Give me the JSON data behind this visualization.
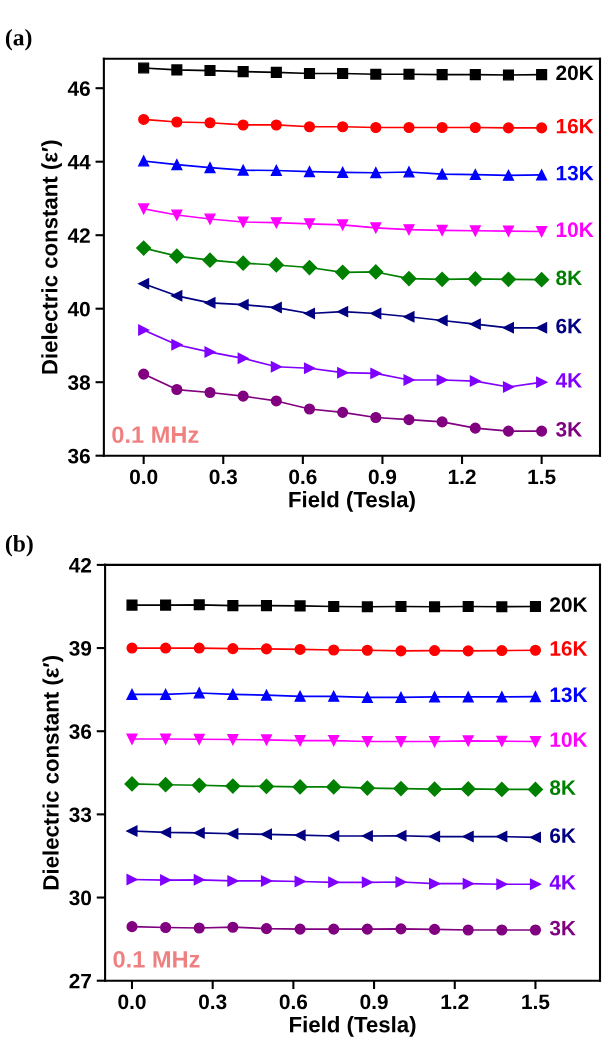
{
  "chart_data": [
    {
      "type": "line",
      "title": "(a)",
      "xlabel": "Field (Tesla)",
      "ylabel": "Dielectric constant (ε′)",
      "x": [
        0,
        0.125,
        0.25,
        0.375,
        0.5,
        0.625,
        0.75,
        0.875,
        1.0,
        1.125,
        1.25,
        1.375,
        1.5
      ],
      "xlim": [
        -0.15,
        1.72
      ],
      "xticks": [
        {
          "value": 0,
          "label": "0.0"
        },
        {
          "value": 0.3,
          "label": "0.3"
        },
        {
          "value": 0.6,
          "label": "0.6"
        },
        {
          "value": 0.9,
          "label": "0.9"
        },
        {
          "value": 1.2,
          "label": "1.2"
        },
        {
          "value": 1.5,
          "label": "1.5"
        }
      ],
      "ylim": [
        36,
        46.8
      ],
      "yticks": [
        36,
        38,
        40,
        42,
        44,
        46
      ],
      "grid": false,
      "legend": false,
      "annotations": [
        "0.1 MHz"
      ],
      "series": [
        {
          "name": "20K",
          "color": "#000000",
          "marker": "square",
          "values": [
            46.55,
            46.5,
            46.48,
            46.45,
            46.43,
            46.4,
            46.4,
            46.38,
            46.38,
            46.37,
            46.37,
            46.36,
            46.37
          ]
        },
        {
          "name": "16K",
          "color": "#ff0000",
          "marker": "circle",
          "values": [
            45.15,
            45.08,
            45.06,
            45.0,
            45.0,
            44.95,
            44.95,
            44.93,
            44.93,
            44.93,
            44.93,
            44.92,
            44.92
          ]
        },
        {
          "name": "13K",
          "color": "#0000ff",
          "marker": "triangle",
          "values": [
            44.02,
            43.92,
            43.84,
            43.77,
            43.76,
            43.73,
            43.71,
            43.7,
            43.72,
            43.66,
            43.65,
            43.63,
            43.64
          ]
        },
        {
          "name": "10K",
          "color": "#ff00ff",
          "marker": "triangle-down",
          "values": [
            42.72,
            42.55,
            42.44,
            42.36,
            42.34,
            42.31,
            42.28,
            42.2,
            42.15,
            42.13,
            42.12,
            42.11,
            42.1
          ]
        },
        {
          "name": "8K",
          "color": "#008000",
          "marker": "diamond",
          "values": [
            41.65,
            41.43,
            41.32,
            41.24,
            41.19,
            41.12,
            40.99,
            41.0,
            40.82,
            40.8,
            40.81,
            40.8,
            40.79
          ]
        },
        {
          "name": "6K",
          "color": "#000080",
          "marker": "triangle-left",
          "values": [
            40.68,
            40.35,
            40.16,
            40.11,
            40.03,
            39.87,
            39.92,
            39.87,
            39.78,
            39.68,
            39.58,
            39.48,
            39.48
          ]
        },
        {
          "name": "4K",
          "color": "#8000ff",
          "marker": "triangle-right",
          "values": [
            39.42,
            39.02,
            38.82,
            38.65,
            38.42,
            38.38,
            38.26,
            38.24,
            38.06,
            38.06,
            38.03,
            37.87,
            38.0
          ]
        },
        {
          "name": "3K",
          "color": "#800080",
          "marker": "circle",
          "values": [
            38.22,
            37.8,
            37.72,
            37.62,
            37.49,
            37.27,
            37.18,
            37.04,
            36.98,
            36.92,
            36.75,
            36.67,
            36.67
          ]
        }
      ]
    },
    {
      "type": "line",
      "title": "(b)",
      "xlabel": "Field (Tesla)",
      "ylabel": "Dielectric constant (ε′)",
      "x": [
        0,
        0.125,
        0.25,
        0.375,
        0.5,
        0.625,
        0.75,
        0.875,
        1.0,
        1.125,
        1.25,
        1.375,
        1.5
      ],
      "xlim": [
        -0.1,
        1.74
      ],
      "xticks": [
        {
          "value": 0,
          "label": "0.0"
        },
        {
          "value": 0.3,
          "label": "0.3"
        },
        {
          "value": 0.6,
          "label": "0.6"
        },
        {
          "value": 0.9,
          "label": "0.9"
        },
        {
          "value": 1.2,
          "label": "1.2"
        },
        {
          "value": 1.5,
          "label": "1.5"
        }
      ],
      "ylim": [
        27,
        42
      ],
      "yticks": [
        27,
        30,
        33,
        36,
        39,
        42
      ],
      "grid": false,
      "legend": false,
      "annotations": [
        "0.1 MHz"
      ],
      "series": [
        {
          "name": "20K",
          "color": "#000000",
          "marker": "square",
          "values": [
            40.55,
            40.55,
            40.56,
            40.53,
            40.53,
            40.52,
            40.5,
            40.49,
            40.5,
            40.49,
            40.5,
            40.49,
            40.5
          ]
        },
        {
          "name": "16K",
          "color": "#ff0000",
          "marker": "circle",
          "values": [
            39.0,
            39.0,
            39.0,
            38.98,
            38.97,
            38.95,
            38.93,
            38.92,
            38.9,
            38.91,
            38.9,
            38.91,
            38.92
          ]
        },
        {
          "name": "13K",
          "color": "#0000ff",
          "marker": "triangle",
          "values": [
            37.33,
            37.33,
            37.38,
            37.33,
            37.3,
            37.26,
            37.26,
            37.22,
            37.22,
            37.24,
            37.24,
            37.24,
            37.25
          ]
        },
        {
          "name": "10K",
          "color": "#ff00ff",
          "marker": "triangle-down",
          "values": [
            35.72,
            35.72,
            35.71,
            35.7,
            35.69,
            35.66,
            35.66,
            35.63,
            35.63,
            35.63,
            35.65,
            35.64,
            35.63
          ]
        },
        {
          "name": "8K",
          "color": "#008000",
          "marker": "diamond",
          "values": [
            34.1,
            34.07,
            34.05,
            34.02,
            34.01,
            33.99,
            33.99,
            33.95,
            33.93,
            33.91,
            33.92,
            33.9,
            33.9
          ]
        },
        {
          "name": "6K",
          "color": "#000080",
          "marker": "triangle-left",
          "values": [
            32.4,
            32.35,
            32.33,
            32.3,
            32.28,
            32.25,
            32.22,
            32.22,
            32.23,
            32.2,
            32.2,
            32.2,
            32.17
          ]
        },
        {
          "name": "4K",
          "color": "#8000ff",
          "marker": "triangle-right",
          "values": [
            30.65,
            30.63,
            30.64,
            30.6,
            30.6,
            30.58,
            30.55,
            30.55,
            30.56,
            30.5,
            30.5,
            30.48,
            30.48
          ]
        },
        {
          "name": "3K",
          "color": "#800080",
          "marker": "circle",
          "values": [
            28.95,
            28.92,
            28.9,
            28.93,
            28.88,
            28.86,
            28.86,
            28.86,
            28.87,
            28.85,
            28.83,
            28.83,
            28.83
          ]
        }
      ]
    }
  ]
}
